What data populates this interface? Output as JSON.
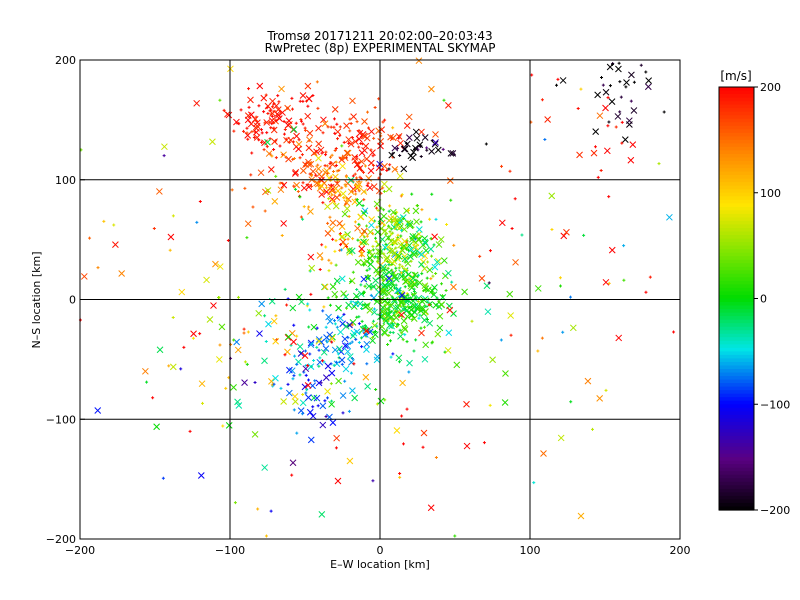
{
  "chart_data": {
    "type": "scatter",
    "title": "Tromsø 20171211 20:02:00–20:03:43",
    "subtitle": "RwPretec (8p) EXPERIMENTAL SKYMAP",
    "xlabel": "E–W location [km]",
    "ylabel": "N–S location [km]",
    "xlim": [
      -200,
      200
    ],
    "ylim": [
      -200,
      200
    ],
    "xticks": [
      "−200",
      "−100",
      "0",
      "100",
      "200"
    ],
    "yticks": [
      "−200",
      "−100",
      "0",
      "100",
      "200"
    ],
    "grid": true,
    "markers": [
      "x",
      "+"
    ],
    "colorbar": {
      "unit": "[m/s]",
      "range": [
        -200,
        200
      ],
      "ticks": [
        "200",
        "100",
        "0",
        "−100",
        "−200"
      ],
      "colormap": "rainbow (black-purple-blue-cyan-green-yellow-orange-red)"
    },
    "clusters": [
      {
        "x": -70,
        "y": 150,
        "sx": 15,
        "sy": 12,
        "n": 120,
        "v": 190,
        "vs": 10
      },
      {
        "x": -35,
        "y": 105,
        "sx": 25,
        "sy": 15,
        "n": 180,
        "v": 170,
        "vs": 25
      },
      {
        "x": -15,
        "y": 140,
        "sx": 25,
        "sy": 15,
        "n": 60,
        "v": 180,
        "vs": 15
      },
      {
        "x": -25,
        "y": 90,
        "sx": 12,
        "sy": 10,
        "n": 40,
        "v": 110,
        "vs": 30
      },
      {
        "x": 10,
        "y": 45,
        "sx": 15,
        "sy": 20,
        "n": 250,
        "v": 40,
        "vs": 40
      },
      {
        "x": 10,
        "y": 0,
        "sx": 18,
        "sy": 20,
        "n": 350,
        "v": 0,
        "vs": 25
      },
      {
        "x": -30,
        "y": -40,
        "sx": 18,
        "sy": 25,
        "n": 110,
        "v": -60,
        "vs": 30
      },
      {
        "x": -45,
        "y": -85,
        "sx": 10,
        "sy": 15,
        "n": 30,
        "v": -90,
        "vs": 20
      },
      {
        "x": -25,
        "y": 45,
        "sx": 10,
        "sy": 10,
        "n": 30,
        "v": 150,
        "vs": 40
      },
      {
        "x": 25,
        "y": 125,
        "sx": 12,
        "sy": 6,
        "n": 40,
        "v": -190,
        "vs": 20
      },
      {
        "x": 160,
        "y": 170,
        "sx": 15,
        "sy": 20,
        "n": 35,
        "v": -190,
        "vs": 15
      },
      {
        "x": 150,
        "y": 140,
        "sx": 15,
        "sy": 25,
        "n": 15,
        "v": 190,
        "vs": 10
      },
      {
        "x": -80,
        "y": -45,
        "sx": 35,
        "sy": 30,
        "n": 60,
        "v": 50,
        "vs": 90
      },
      {
        "x": 0,
        "y": 0,
        "sx": 100,
        "sy": 100,
        "n": 250,
        "v": 100,
        "vs": 120
      }
    ]
  }
}
